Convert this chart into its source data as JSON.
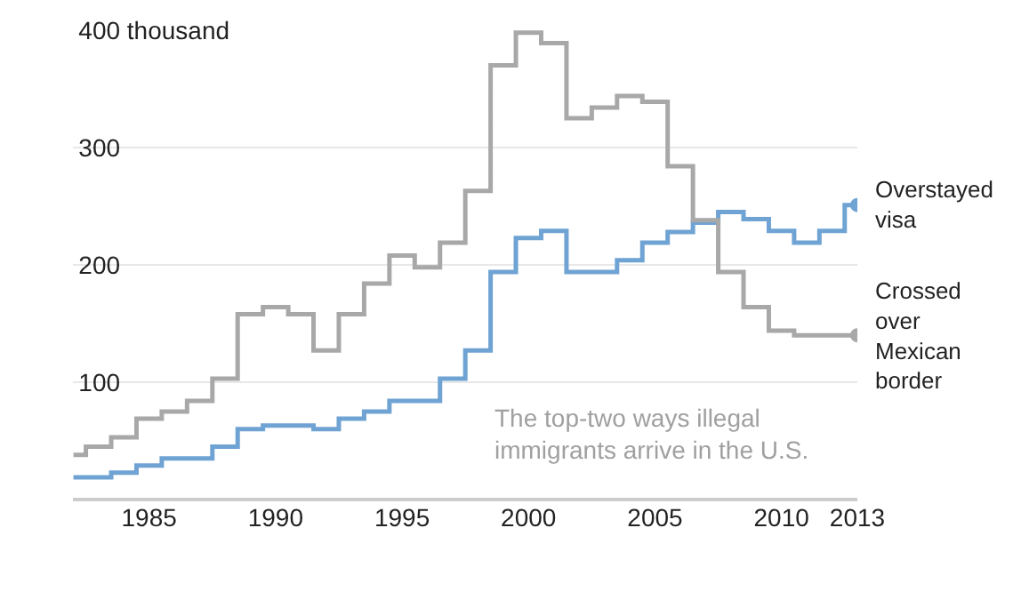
{
  "chart_data": {
    "type": "step",
    "x": [
      1982,
      1983,
      1984,
      1985,
      1986,
      1987,
      1988,
      1989,
      1990,
      1991,
      1992,
      1993,
      1994,
      1995,
      1996,
      1997,
      1998,
      1999,
      2000,
      2001,
      2002,
      2003,
      2004,
      2005,
      2006,
      2007,
      2008,
      2009,
      2010,
      2011,
      2012,
      2013
    ],
    "series": [
      {
        "name": "Overstayed visa",
        "color": "#6fa3d3",
        "values": [
          19,
          19,
          23,
          29,
          35,
          35,
          45,
          60,
          63,
          63,
          60,
          69,
          75,
          84,
          84,
          103,
          127,
          194,
          223,
          229,
          194,
          194,
          204,
          219,
          228,
          236,
          245,
          239,
          229,
          219,
          229,
          251
        ]
      },
      {
        "name": "Crossed over Mexican border",
        "color": "#a8a8a8",
        "values": [
          38,
          45,
          53,
          69,
          75,
          84,
          103,
          158,
          164,
          158,
          127,
          158,
          184,
          208,
          198,
          219,
          263,
          370,
          398,
          389,
          325,
          334,
          344,
          339,
          284,
          238,
          194,
          164,
          144,
          140,
          140,
          140
        ]
      }
    ],
    "xlim": [
      1982,
      2013
    ],
    "xticks": [
      1985,
      1990,
      1995,
      2000,
      2005,
      2010,
      2013
    ],
    "ylim": [
      0,
      400
    ],
    "yticks": [
      100,
      200,
      300,
      {
        "value": 400,
        "label": "400 thousand"
      }
    ],
    "grid": "y",
    "legend": false,
    "annotations": [
      "The top-two ways illegal immigrants arrive in the U.S."
    ]
  }
}
